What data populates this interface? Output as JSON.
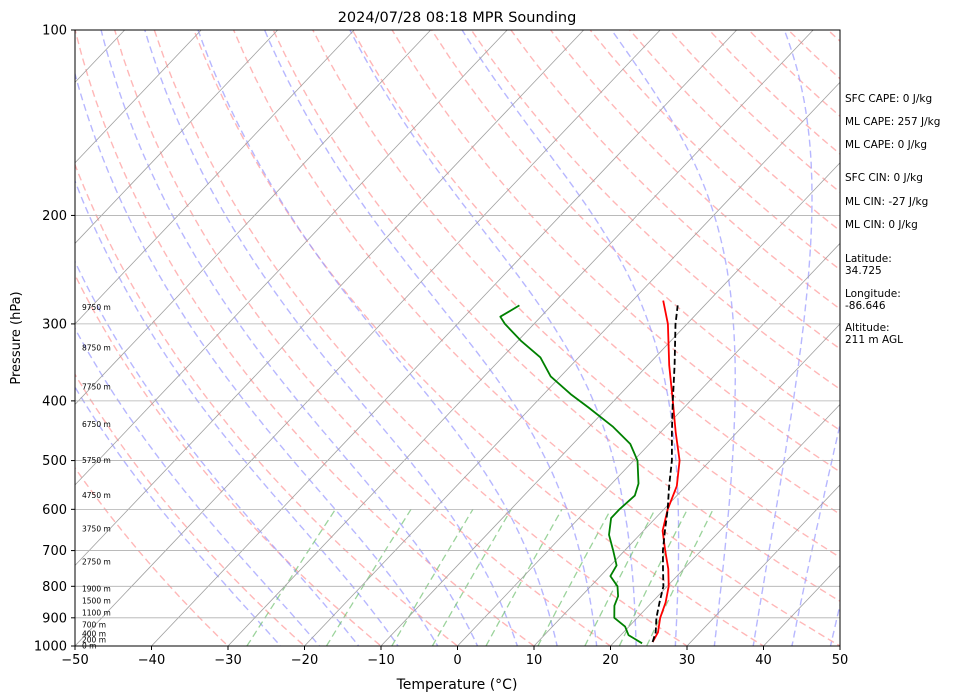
{
  "chart_data": {
    "type": "line",
    "title": "2024/07/28 08:18 MPR Sounding",
    "xlabel": "Temperature (°C)",
    "ylabel": "Pressure (hPa)",
    "xlim": [
      -50,
      50
    ],
    "ylim": [
      1000,
      100
    ],
    "y_scale": "log",
    "grid": true,
    "x_ticks": [
      -50,
      -40,
      -30,
      -20,
      -10,
      0,
      10,
      20,
      30,
      40,
      50
    ],
    "y_ticks": [
      1000,
      900,
      800,
      700,
      600,
      500,
      400,
      300,
      200,
      100
    ],
    "series": [
      {
        "role": "temperature",
        "color": "#ff0000",
        "points": [
          {
            "p": 985,
            "t": 25.0
          },
          {
            "p": 950,
            "t": 24.5
          },
          {
            "p": 900,
            "t": 23.0
          },
          {
            "p": 850,
            "t": 21.8
          },
          {
            "p": 800,
            "t": 20.2
          },
          {
            "p": 750,
            "t": 18.0
          },
          {
            "p": 700,
            "t": 15.3
          },
          {
            "p": 650,
            "t": 12.5
          },
          {
            "p": 600,
            "t": 10.5
          },
          {
            "p": 550,
            "t": 8.8
          },
          {
            "p": 500,
            "t": 6.0
          },
          {
            "p": 450,
            "t": 2.0
          },
          {
            "p": 400,
            "t": -2.3
          },
          {
            "p": 350,
            "t": -7.2
          },
          {
            "p": 300,
            "t": -12.5
          },
          {
            "p": 275,
            "t": -16.0
          }
        ]
      },
      {
        "role": "dewpoint",
        "color": "#008000",
        "points": [
          {
            "p": 990,
            "t": 23.8
          },
          {
            "p": 960,
            "t": 21.0
          },
          {
            "p": 930,
            "t": 19.5
          },
          {
            "p": 900,
            "t": 17.0
          },
          {
            "p": 860,
            "t": 15.5
          },
          {
            "p": 830,
            "t": 14.8
          },
          {
            "p": 800,
            "t": 13.5
          },
          {
            "p": 770,
            "t": 11.3
          },
          {
            "p": 740,
            "t": 10.8
          },
          {
            "p": 700,
            "t": 8.5
          },
          {
            "p": 660,
            "t": 6.0
          },
          {
            "p": 620,
            "t": 4.2
          },
          {
            "p": 600,
            "t": 4.2
          },
          {
            "p": 570,
            "t": 4.5
          },
          {
            "p": 545,
            "t": 3.5
          },
          {
            "p": 500,
            "t": 0.5
          },
          {
            "p": 470,
            "t": -2.5
          },
          {
            "p": 440,
            "t": -7.0
          },
          {
            "p": 410,
            "t": -12.5
          },
          {
            "p": 390,
            "t": -16.5
          },
          {
            "p": 365,
            "t": -21.3
          },
          {
            "p": 340,
            "t": -25.0
          },
          {
            "p": 320,
            "t": -29.5
          },
          {
            "p": 300,
            "t": -33.8
          },
          {
            "p": 292,
            "t": -35.3
          },
          {
            "p": 280,
            "t": -34.2
          }
        ]
      },
      {
        "role": "parcel",
        "color": "#000000",
        "style": "dashed",
        "points": [
          {
            "p": 985,
            "t": 25.0
          },
          {
            "p": 950,
            "t": 24.2
          },
          {
            "p": 900,
            "t": 22.5
          },
          {
            "p": 850,
            "t": 21.0
          },
          {
            "p": 800,
            "t": 19.5
          },
          {
            "p": 750,
            "t": 17.3
          },
          {
            "p": 700,
            "t": 15.0
          },
          {
            "p": 650,
            "t": 12.8
          },
          {
            "p": 600,
            "t": 10.5
          },
          {
            "p": 550,
            "t": 7.8
          },
          {
            "p": 500,
            "t": 5.0
          },
          {
            "p": 450,
            "t": 1.5
          },
          {
            "p": 400,
            "t": -2.3
          },
          {
            "p": 350,
            "t": -6.5
          },
          {
            "p": 300,
            "t": -11.5
          },
          {
            "p": 280,
            "t": -13.5
          }
        ]
      }
    ],
    "height_labels": [
      {
        "label": "0 m",
        "p": 1000
      },
      {
        "label": "200 m",
        "p": 978
      },
      {
        "label": "400 m",
        "p": 956
      },
      {
        "label": "700 m",
        "p": 924
      },
      {
        "label": "1100 m",
        "p": 884
      },
      {
        "label": "1500 m",
        "p": 845
      },
      {
        "label": "1900 m",
        "p": 808
      },
      {
        "label": "2750 m",
        "p": 730
      },
      {
        "label": "3750 m",
        "p": 646
      },
      {
        "label": "4750 m",
        "p": 570
      },
      {
        "label": "5750 m",
        "p": 500
      },
      {
        "label": "6750 m",
        "p": 437
      },
      {
        "label": "7750 m",
        "p": 380
      },
      {
        "label": "8750 m",
        "p": 328
      },
      {
        "label": "9750 m",
        "p": 282
      }
    ],
    "background_colors": {
      "isotherm": "#a0a0a0",
      "dry_adiabat": "#ff9999",
      "moist_adiabat": "#9999ff",
      "mixing_ratio": "#66bb66"
    }
  },
  "annotations": {
    "sfc_cape": "SFC CAPE: 0 J/kg",
    "ml_cape_1": "ML CAPE: 257 J/kg",
    "ml_cape_2": "ML CAPE: 0 J/kg",
    "sfc_cin": "SFC CIN: 0 J/kg",
    "ml_cin_1": "ML CIN: -27 J/kg",
    "ml_cin_2": "ML CIN: 0 J/kg",
    "latitude": "Latitude:\n34.725",
    "longitude": "Longitude:\n-86.646",
    "altitude": "Altitude:\n211 m AGL"
  }
}
